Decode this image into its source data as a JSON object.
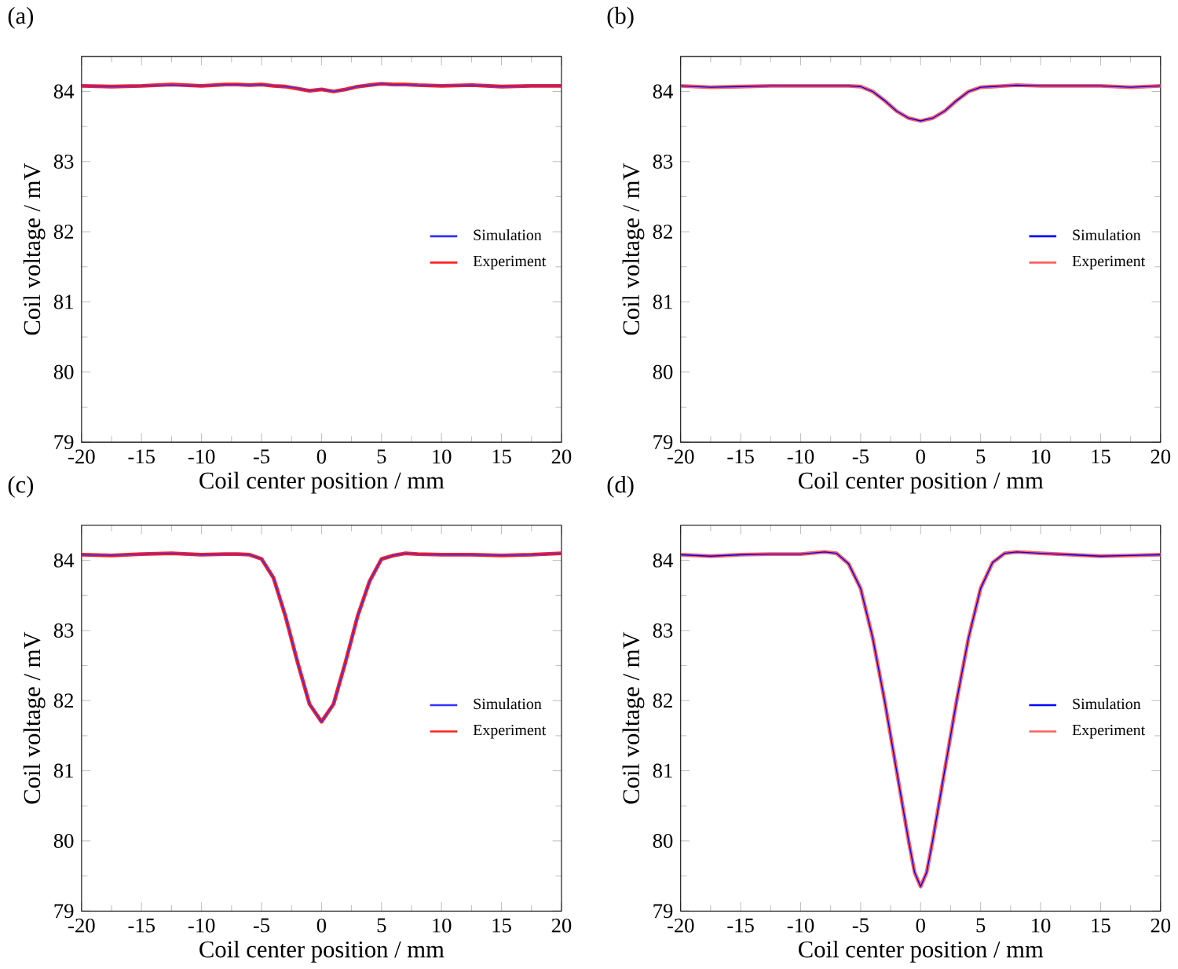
{
  "chart_data": [
    {
      "type": "line",
      "title": "(a)",
      "xlabel": "Coil center position / mm",
      "ylabel": "Coil voltage / mV",
      "xlim": [
        -20,
        20
      ],
      "ylim": [
        79,
        84.5
      ],
      "xticks": [
        -20,
        -15,
        -10,
        -5,
        0,
        5,
        10,
        15,
        20
      ],
      "yticks": [
        79,
        80,
        81,
        82,
        83,
        84
      ],
      "legend": "right",
      "x": [
        -20,
        -17.5,
        -15,
        -12.5,
        -10,
        -8,
        -7,
        -6,
        -5,
        -4,
        -3,
        -2,
        -1,
        0,
        1,
        2,
        3,
        4,
        5,
        6,
        7,
        8,
        10,
        12.5,
        15,
        17.5,
        20
      ],
      "series": [
        {
          "name": "Simulation",
          "color": "#3030ff",
          "values": [
            84.08,
            84.07,
            84.08,
            84.09,
            84.08,
            84.1,
            84.1,
            84.09,
            84.1,
            84.08,
            84.07,
            84.05,
            84.01,
            84.03,
            84.0,
            84.03,
            84.07,
            84.09,
            84.11,
            84.1,
            84.1,
            84.09,
            84.08,
            84.09,
            84.07,
            84.08,
            84.08
          ]
        },
        {
          "name": "Experiment",
          "color": "#ff2020",
          "values": [
            84.08,
            84.07,
            84.08,
            84.1,
            84.08,
            84.1,
            84.1,
            84.09,
            84.1,
            84.08,
            84.07,
            84.04,
            84.01,
            84.03,
            84.0,
            84.03,
            84.07,
            84.09,
            84.11,
            84.1,
            84.1,
            84.09,
            84.08,
            84.09,
            84.07,
            84.08,
            84.08
          ]
        }
      ]
    },
    {
      "type": "line",
      "title": "(b)",
      "xlabel": "Coil center position / mm",
      "ylabel": "Coil voltage / mV",
      "xlim": [
        -20,
        20
      ],
      "ylim": [
        79,
        84.5
      ],
      "xticks": [
        -20,
        -15,
        -10,
        -5,
        0,
        5,
        10,
        15,
        20
      ],
      "yticks": [
        79,
        80,
        81,
        82,
        83,
        84
      ],
      "legend": "right",
      "x": [
        -20,
        -17.5,
        -15,
        -12.5,
        -10,
        -8,
        -7,
        -6,
        -5,
        -4,
        -3,
        -2,
        -1,
        0,
        1,
        2,
        3,
        4,
        5,
        6,
        7,
        8,
        10,
        12.5,
        15,
        17.5,
        20
      ],
      "series": [
        {
          "name": "Simulation",
          "color": "#0000ff",
          "values": [
            84.08,
            84.06,
            84.07,
            84.08,
            84.08,
            84.08,
            84.08,
            84.08,
            84.07,
            84.0,
            83.87,
            83.72,
            83.62,
            83.58,
            83.62,
            83.72,
            83.87,
            84.0,
            84.06,
            84.07,
            84.08,
            84.09,
            84.08,
            84.08,
            84.08,
            84.06,
            84.08
          ]
        },
        {
          "name": "Experiment",
          "color": "#ff6060",
          "values": [
            84.08,
            84.06,
            84.07,
            84.08,
            84.08,
            84.08,
            84.08,
            84.08,
            84.07,
            84.0,
            83.87,
            83.72,
            83.62,
            83.58,
            83.62,
            83.72,
            83.87,
            84.0,
            84.06,
            84.07,
            84.08,
            84.09,
            84.08,
            84.08,
            84.08,
            84.06,
            84.08
          ]
        }
      ]
    },
    {
      "type": "line",
      "title": "(c)",
      "xlabel": "Coil center position / mm",
      "ylabel": "Coil voltage / mV",
      "xlim": [
        -20,
        20
      ],
      "ylim": [
        79,
        84.5
      ],
      "xticks": [
        -20,
        -15,
        -10,
        -5,
        0,
        5,
        10,
        15,
        20
      ],
      "yticks": [
        79,
        80,
        81,
        82,
        83,
        84
      ],
      "legend": "right",
      "x": [
        -20,
        -17.5,
        -15,
        -12.5,
        -10,
        -8,
        -7,
        -6,
        -5,
        -4,
        -3,
        -2,
        -1,
        0,
        1,
        2,
        3,
        4,
        5,
        6,
        7,
        8,
        10,
        12.5,
        15,
        17.5,
        20
      ],
      "series": [
        {
          "name": "Simulation",
          "color": "#3030ff",
          "values": [
            84.08,
            84.07,
            84.09,
            84.1,
            84.08,
            84.09,
            84.09,
            84.08,
            84.02,
            83.75,
            83.2,
            82.55,
            81.95,
            81.7,
            81.95,
            82.55,
            83.2,
            83.7,
            84.02,
            84.07,
            84.1,
            84.09,
            84.08,
            84.08,
            84.07,
            84.08,
            84.1
          ]
        },
        {
          "name": "Experiment",
          "color": "#ff2020",
          "values": [
            84.08,
            84.07,
            84.09,
            84.1,
            84.08,
            84.09,
            84.09,
            84.08,
            84.02,
            83.75,
            83.2,
            82.55,
            81.95,
            81.7,
            81.95,
            82.55,
            83.2,
            83.7,
            84.02,
            84.07,
            84.1,
            84.09,
            84.08,
            84.08,
            84.07,
            84.08,
            84.1
          ]
        }
      ]
    },
    {
      "type": "line",
      "title": "(d)",
      "xlabel": "Coil center position / mm",
      "ylabel": "Coil voltage / mV",
      "xlim": [
        -20,
        20
      ],
      "ylim": [
        79,
        84.5
      ],
      "xticks": [
        -20,
        -15,
        -10,
        -5,
        0,
        5,
        10,
        15,
        20
      ],
      "yticks": [
        79,
        80,
        81,
        82,
        83,
        84
      ],
      "legend": "right",
      "x": [
        -20,
        -17.5,
        -15,
        -12.5,
        -10,
        -8,
        -7,
        -6,
        -5,
        -4,
        -3,
        -2,
        -1,
        -0.5,
        0,
        0.5,
        1,
        2,
        3,
        4,
        5,
        6,
        7,
        8,
        10,
        12.5,
        15,
        17.5,
        20
      ],
      "series": [
        {
          "name": "Simulation",
          "color": "#0000ff",
          "values": [
            84.08,
            84.06,
            84.08,
            84.09,
            84.09,
            84.12,
            84.1,
            83.95,
            83.6,
            82.9,
            82.0,
            81.0,
            80.0,
            79.55,
            79.35,
            79.55,
            80.0,
            81.0,
            82.0,
            82.9,
            83.6,
            83.97,
            84.1,
            84.12,
            84.1,
            84.08,
            84.06,
            84.07,
            84.08
          ]
        },
        {
          "name": "Experiment",
          "color": "#ff6060",
          "values": [
            84.08,
            84.06,
            84.08,
            84.09,
            84.09,
            84.12,
            84.1,
            83.95,
            83.6,
            82.9,
            82.0,
            81.0,
            80.0,
            79.55,
            79.35,
            79.55,
            80.0,
            81.0,
            82.0,
            82.9,
            83.6,
            83.97,
            84.1,
            84.12,
            84.1,
            84.08,
            84.06,
            84.07,
            84.08
          ]
        }
      ]
    }
  ]
}
